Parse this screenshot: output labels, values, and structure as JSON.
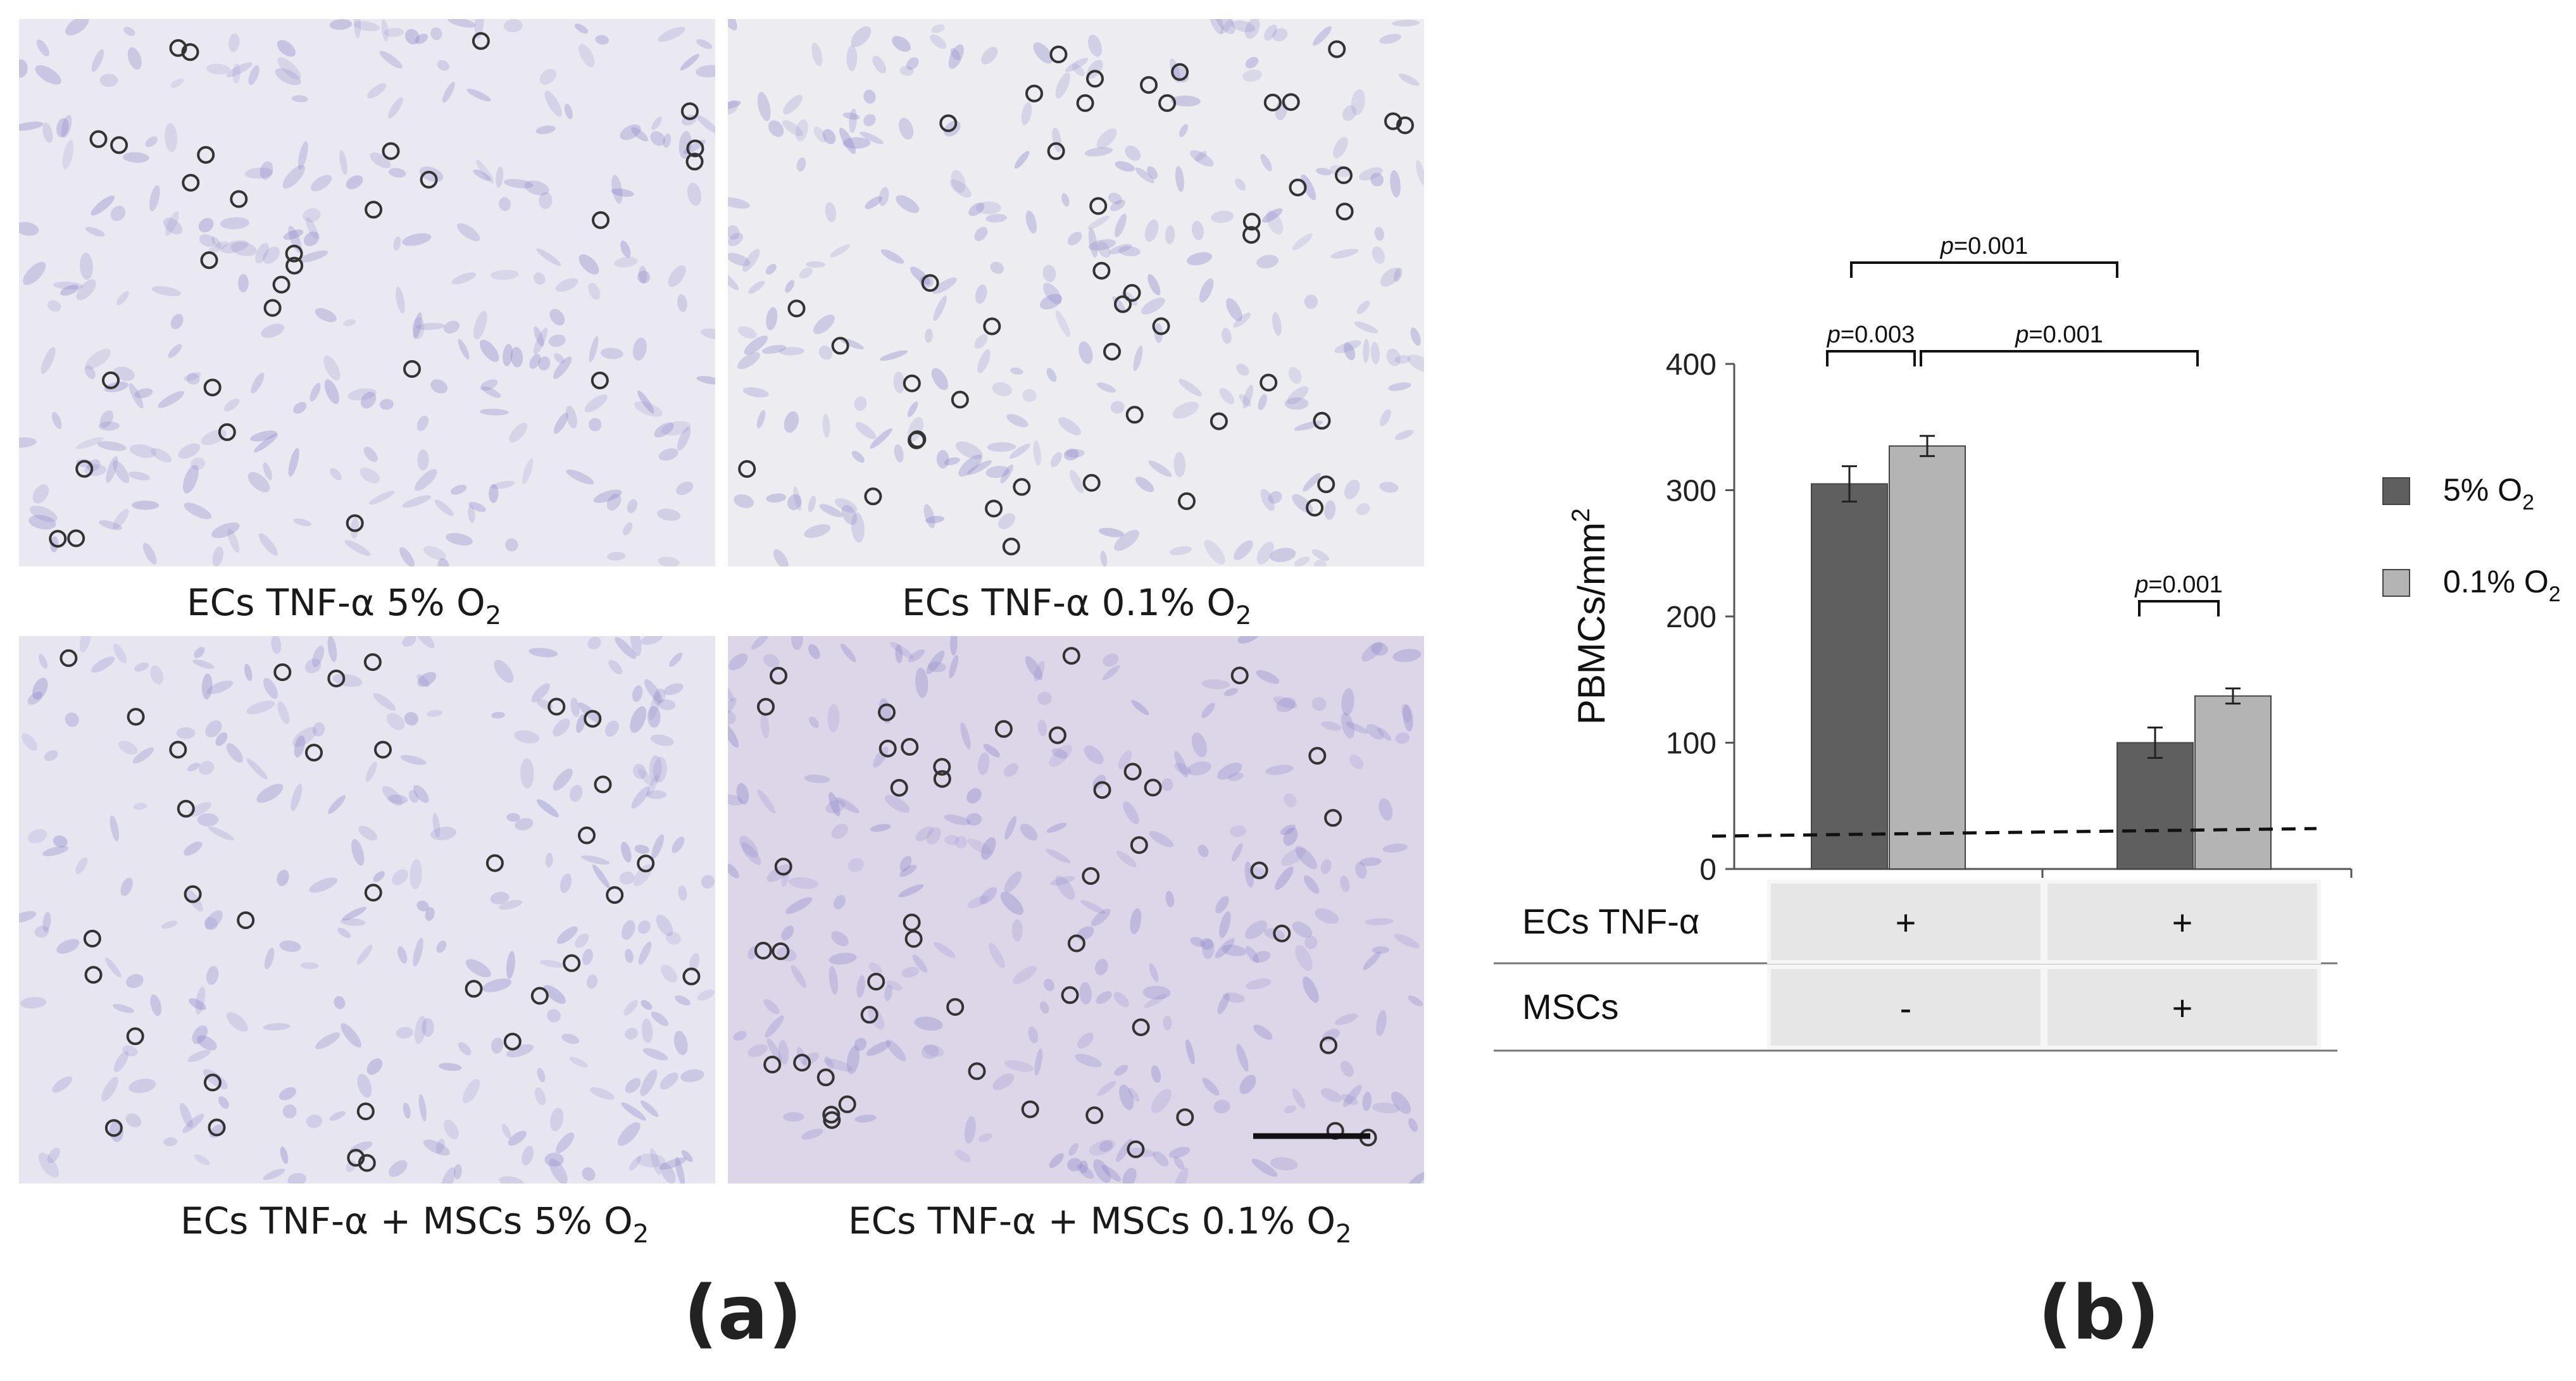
{
  "panel_a": {
    "label": "(a)",
    "micrographs": [
      {
        "caption_main": "ECs TNF-α 5% O",
        "caption_sub": "2"
      },
      {
        "caption_main": "ECs TNF-α 0.1% O",
        "caption_sub": "2"
      },
      {
        "caption_main": "ECs TNF-α + MSCs 5% O",
        "caption_sub": "2"
      },
      {
        "caption_main": "ECs TNF-α + MSCs 0.1% O",
        "caption_sub": "2"
      }
    ]
  },
  "panel_b": {
    "label": "(b)",
    "condition_table": {
      "rows": [
        {
          "name": "ECs TNF-α",
          "values": [
            "+",
            "+"
          ]
        },
        {
          "name": "MSCs",
          "values": [
            "-",
            "+"
          ]
        }
      ]
    },
    "significance": [
      {
        "text": "p=0.001"
      },
      {
        "text": "p=0.003"
      },
      {
        "text": "p=0.001"
      },
      {
        "text": "p=0.001"
      }
    ]
  },
  "chart_data": {
    "type": "bar",
    "categories": [
      "ECs TNF-α + / MSCs -",
      "ECs TNF-α + / MSCs +"
    ],
    "series": [
      {
        "name": "5% O2",
        "values": [
          305,
          100
        ],
        "errors": [
          14,
          12
        ],
        "color": "#5f5f5f"
      },
      {
        "name": "0.1% O2",
        "values": [
          335,
          137
        ],
        "errors": [
          8,
          6
        ],
        "color": "#b4b4b4"
      }
    ],
    "ylabel": "PBMCs/mm",
    "ylabel_sup": "2",
    "ylim": [
      0,
      400
    ],
    "yticks": [
      0,
      100,
      200,
      300,
      400
    ],
    "baseline_dashed": 30,
    "legend": [
      {
        "text": "5% O",
        "sub": "2"
      },
      {
        "text": "0.1% O",
        "sub": "2"
      }
    ],
    "legend_position": "right"
  }
}
